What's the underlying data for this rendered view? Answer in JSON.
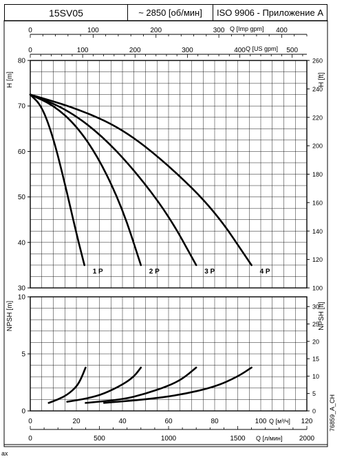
{
  "header": {
    "model": "15SV05",
    "speed": "~ 2850 [об/мин]",
    "standard": "ISO 9906 - Приложение А"
  },
  "footer": {
    "code": "76859_A_CH",
    "corner": "ax"
  },
  "chart_data": [
    {
      "type": "line",
      "id": "head",
      "ylabel": "H [m]",
      "ylim": [
        30,
        80
      ],
      "yticks": [
        30,
        40,
        50,
        60,
        70,
        80
      ],
      "ylabel_right": "H [ft]",
      "yticks_right": [
        100,
        120,
        140,
        160,
        180,
        200,
        220,
        240,
        260
      ],
      "grid": true,
      "series": [
        {
          "name": "1 P",
          "x": [
            0,
            5,
            10,
            15,
            20,
            23.5
          ],
          "y": [
            72.5,
            70,
            63,
            53,
            42,
            35
          ]
        },
        {
          "name": "2 P",
          "x": [
            0,
            10,
            20,
            30,
            40,
            48
          ],
          "y": [
            72.5,
            70.2,
            65.7,
            58.3,
            47.5,
            35
          ]
        },
        {
          "name": "3 P",
          "x": [
            0,
            15,
            30,
            45,
            60,
            72
          ],
          "y": [
            72.5,
            69.5,
            64,
            56,
            46,
            35
          ]
        },
        {
          "name": "4 P",
          "x": [
            0,
            20,
            40,
            60,
            80,
            96
          ],
          "y": [
            72.5,
            69.5,
            65,
            57,
            47,
            35
          ]
        }
      ]
    },
    {
      "type": "line",
      "id": "npsh",
      "ylabel": "NPSH [m]",
      "ylim": [
        0,
        10
      ],
      "yticks": [
        0,
        5,
        10
      ],
      "ylabel_right": "NPSH [ft]",
      "yticks_right": [
        0,
        5,
        10,
        15,
        20,
        25,
        30
      ],
      "grid": true,
      "series": [
        {
          "name": "1 P",
          "x": [
            8,
            12,
            16,
            20,
            22,
            24
          ],
          "y": [
            0.7,
            1.0,
            1.4,
            2.1,
            2.8,
            3.8
          ]
        },
        {
          "name": "2 P",
          "x": [
            16,
            25,
            32,
            40,
            45,
            48
          ],
          "y": [
            0.8,
            1.1,
            1.5,
            2.3,
            3.0,
            3.8
          ]
        },
        {
          "name": "3 P",
          "x": [
            24,
            40,
            50,
            60,
            66,
            72
          ],
          "y": [
            0.7,
            1.0,
            1.5,
            2.2,
            2.8,
            3.8
          ]
        },
        {
          "name": "4 P",
          "x": [
            32,
            50,
            65,
            80,
            90,
            96
          ],
          "y": [
            0.7,
            1.0,
            1.4,
            2.1,
            3.0,
            3.8
          ]
        }
      ]
    }
  ],
  "axes": {
    "q_m3h": {
      "label": "Q [м³/ч]",
      "min": 0,
      "max": 120,
      "ticks": [
        0,
        20,
        40,
        60,
        80,
        100,
        120
      ]
    },
    "q_lmin": {
      "label": "Q [л/мин]",
      "min": 0,
      "max": 2000,
      "ticks": [
        0,
        500,
        1000,
        1500,
        2000
      ]
    },
    "q_imp": {
      "label": "Q [Imp gpm]",
      "min": 0,
      "max": 440,
      "ticks": [
        0,
        100,
        200,
        300,
        400
      ]
    },
    "q_us": {
      "label": "Q [US gpm]",
      "min": 0,
      "max": 528,
      "ticks": [
        0,
        100,
        200,
        300,
        400,
        500
      ]
    }
  }
}
